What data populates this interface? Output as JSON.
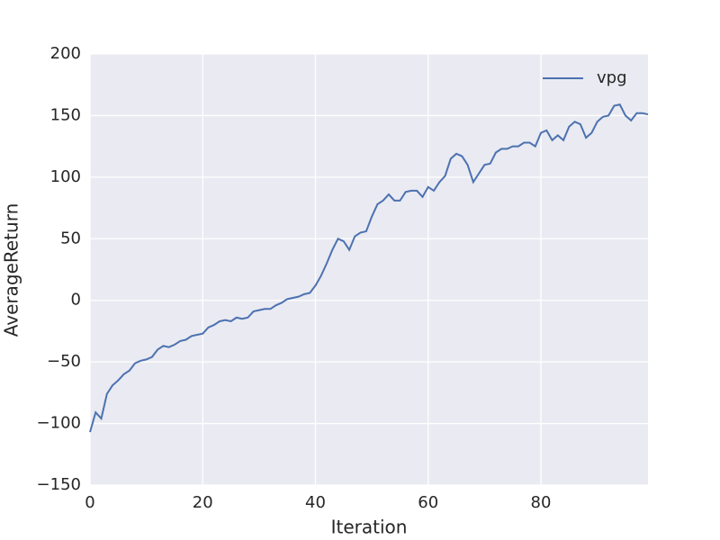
{
  "chart_data": {
    "type": "line",
    "xlabel": "Iteration",
    "ylabel": "AverageReturn",
    "x": [
      0,
      1,
      2,
      3,
      4,
      5,
      6,
      7,
      8,
      9,
      10,
      11,
      12,
      13,
      14,
      15,
      16,
      17,
      18,
      19,
      20,
      21,
      22,
      23,
      24,
      25,
      26,
      27,
      28,
      29,
      30,
      31,
      32,
      33,
      34,
      35,
      36,
      37,
      38,
      39,
      40,
      41,
      42,
      43,
      44,
      45,
      46,
      47,
      48,
      49,
      50,
      51,
      52,
      53,
      54,
      55,
      56,
      57,
      58,
      59,
      60,
      61,
      62,
      63,
      64,
      65,
      66,
      67,
      68,
      69,
      70,
      71,
      72,
      73,
      74,
      75,
      76,
      77,
      78,
      79,
      80,
      81,
      82,
      83,
      84,
      85,
      86,
      87,
      88,
      89,
      90,
      91,
      92,
      93,
      94,
      95,
      96,
      97,
      98,
      99
    ],
    "series": [
      {
        "name": "vpg",
        "color": "#4c72b0",
        "values": [
          -107,
          -91,
          -96,
          -76,
          -69,
          -65,
          -60,
          -57,
          -51,
          -49,
          -48,
          -46,
          -40,
          -37,
          -38,
          -36,
          -33,
          -32,
          -29,
          -28,
          -27,
          -22,
          -20,
          -17,
          -16,
          -17,
          -14,
          -15,
          -14,
          -9,
          -8,
          -7,
          -7,
          -4,
          -2,
          1,
          2,
          3,
          5,
          6,
          12,
          20,
          30,
          41,
          50,
          48,
          41,
          52,
          55,
          56,
          68,
          78,
          81,
          86,
          81,
          81,
          88,
          89,
          89,
          84,
          92,
          89,
          96,
          101,
          115,
          119,
          117,
          110,
          96,
          103,
          110,
          111,
          120,
          123,
          123,
          125,
          125,
          128,
          128,
          125,
          136,
          138,
          130,
          134,
          130,
          141,
          145,
          143,
          132,
          136,
          145,
          149,
          150,
          158,
          159,
          150,
          146,
          152,
          152,
          151
        ]
      }
    ],
    "xlim": [
      0,
      99
    ],
    "xticks": [
      0,
      20,
      40,
      60,
      80
    ],
    "ylim": [
      -150,
      200
    ],
    "yticks": [
      {
        "value": -150,
        "label": "−150"
      },
      {
        "value": -100,
        "label": "−100"
      },
      {
        "value": -50,
        "label": "−50"
      },
      0,
      50,
      100,
      150,
      200
    ],
    "grid": true,
    "legend": "upper right"
  }
}
